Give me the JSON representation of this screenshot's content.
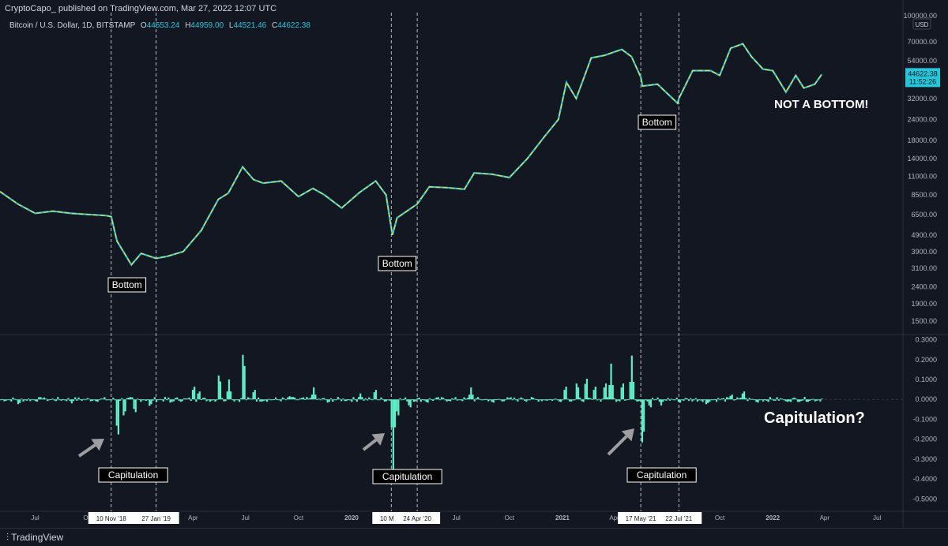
{
  "header": {
    "publisher": "CryptoCapo_ published on TradingView.com, Mar 27, 2022 12:07 UTC"
  },
  "legend": {
    "symbol": "Bitcoin / U.S. Dollar, 1D, BITSTAMP",
    "open_label": "O",
    "open": "44553.24",
    "high_label": "H",
    "high": "44959.00",
    "low_label": "L",
    "low": "44521.46",
    "close_label": "C",
    "close": "44622.38"
  },
  "price_axis": {
    "currency": "USD",
    "last_price": "44622.38",
    "countdown": "11:52:26",
    "price_color": "#26c6da"
  },
  "footer": {
    "brand": "TradingView"
  },
  "annotations": {
    "bottom_label": "Bottom",
    "capitulation_label": "Capitulation",
    "not_a_bottom": "NOT A BOTTOM!",
    "capitulation_question": "Capitulation?"
  },
  "colors": {
    "background": "#131722",
    "price_line": "#e6d84a",
    "price_line_alt": "#26c6da",
    "histogram": "#5ff0c8",
    "grid": "#1e222d",
    "arrow": "#9e9e9e"
  },
  "chart_data": [
    {
      "type": "line",
      "title": "",
      "series": [
        {
          "name": "",
          "values": [
            [
              "2018-05-01",
              8900
            ],
            [
              "2018-06-01",
              7500
            ],
            [
              "2018-07-01",
              6600
            ],
            [
              "2018-08-01",
              6800
            ],
            [
              "2018-09-01",
              6600
            ],
            [
              "2018-10-01",
              6500
            ],
            [
              "2018-11-01",
              6400
            ],
            [
              "2018-11-10",
              6300
            ],
            [
              "2018-11-20",
              4500
            ],
            [
              "2018-12-15",
              3250
            ],
            [
              "2019-01-01",
              3800
            ],
            [
              "2019-01-27",
              3550
            ],
            [
              "2019-02-15",
              3650
            ],
            [
              "2019-03-15",
              3900
            ],
            [
              "2019-04-15",
              5200
            ],
            [
              "2019-05-15",
              8000
            ],
            [
              "2019-06-01",
              8700
            ],
            [
              "2019-06-26",
              12500
            ],
            [
              "2019-07-15",
              10500
            ],
            [
              "2019-08-01",
              10000
            ],
            [
              "2019-09-01",
              10300
            ],
            [
              "2019-10-01",
              8300
            ],
            [
              "2019-10-26",
              9300
            ],
            [
              "2019-11-15",
              8500
            ],
            [
              "2019-12-15",
              7100
            ],
            [
              "2020-01-15",
              8800
            ],
            [
              "2020-02-12",
              10300
            ],
            [
              "2020-03-01",
              8500
            ],
            [
              "2020-03-12",
              4900
            ],
            [
              "2020-03-20",
              6200
            ],
            [
              "2020-04-24",
              7500
            ],
            [
              "2020-05-15",
              9500
            ],
            [
              "2020-06-15",
              9400
            ],
            [
              "2020-07-15",
              9200
            ],
            [
              "2020-08-01",
              11500
            ],
            [
              "2020-09-01",
              11300
            ],
            [
              "2020-10-01",
              10800
            ],
            [
              "2020-11-01",
              14000
            ],
            [
              "2020-12-01",
              19000
            ],
            [
              "2020-12-25",
              24000
            ],
            [
              "2021-01-08",
              40000
            ],
            [
              "2021-01-25",
              32000
            ],
            [
              "2021-02-20",
              56000
            ],
            [
              "2021-03-15",
              58000
            ],
            [
              "2021-04-14",
              63000
            ],
            [
              "2021-05-01",
              57000
            ],
            [
              "2021-05-17",
              43000
            ],
            [
              "2021-05-20",
              38000
            ],
            [
              "2021-06-15",
              39000
            ],
            [
              "2021-07-20",
              30000
            ],
            [
              "2021-07-22",
              32000
            ],
            [
              "2021-08-15",
              47000
            ],
            [
              "2021-09-15",
              47000
            ],
            [
              "2021-10-01",
              44000
            ],
            [
              "2021-10-20",
              64000
            ],
            [
              "2021-11-10",
              68000
            ],
            [
              "2021-11-25",
              57000
            ],
            [
              "2021-12-15",
              48000
            ],
            [
              "2022-01-01",
              47000
            ],
            [
              "2022-01-24",
              35000
            ],
            [
              "2022-02-10",
              44000
            ],
            [
              "2022-02-24",
              37000
            ],
            [
              "2022-03-15",
              39000
            ],
            [
              "2022-03-27",
              44622
            ]
          ]
        }
      ],
      "y_ticks": [
        "1500.00",
        "1900.00",
        "2400.00",
        "3100.00",
        "3900.00",
        "4900.00",
        "6500.00",
        "8500.00",
        "11000.00",
        "14000.00",
        "18000.00",
        "24000.00",
        "32000.00",
        "54000.00",
        "70000.00",
        "100000.00"
      ],
      "y_scale": "log",
      "ylim": [
        1300,
        100000
      ],
      "x_ticks": [
        "Jul",
        "Oct",
        "2019",
        "Apr",
        "Jul",
        "Oct",
        "2020",
        "Apr",
        "Jul",
        "Oct",
        "2021",
        "Apr",
        "Jul",
        "Oct",
        "2022",
        "Apr",
        "Jul"
      ],
      "x_highlight": [
        "10 Nov '18",
        "27 Jan '19",
        "10 Mar '",
        "24 Apr '20",
        "17 May '21",
        "22 Jul '21"
      ],
      "xlim": [
        "2018-05-01",
        "2022-08-15"
      ],
      "grid": false
    },
    {
      "type": "bar",
      "title": "",
      "series": [
        {
          "name": "",
          "values": [
            [
              "2018-06-01",
              -0.03
            ],
            [
              "2018-07-15",
              0.01
            ],
            [
              "2018-09-01",
              -0.02
            ],
            [
              "2018-10-15",
              -0.015
            ],
            [
              "2018-11-20",
              -0.22
            ],
            [
              "2018-12-01",
              -0.1
            ],
            [
              "2018-12-20",
              -0.08
            ],
            [
              "2019-01-15",
              -0.04
            ],
            [
              "2019-02-20",
              -0.02
            ],
            [
              "2019-04-01",
              0.08
            ],
            [
              "2019-04-10",
              0.05
            ],
            [
              "2019-05-15",
              0.15
            ],
            [
              "2019-06-01",
              0.1
            ],
            [
              "2019-06-26",
              0.28
            ],
            [
              "2019-07-15",
              0.06
            ],
            [
              "2019-09-15",
              0.02
            ],
            [
              "2019-10-26",
              0.06
            ],
            [
              "2019-11-20",
              -0.02
            ],
            [
              "2020-01-15",
              0.03
            ],
            [
              "2020-02-10",
              0.06
            ],
            [
              "2020-03-12",
              -0.35
            ],
            [
              "2020-03-20",
              -0.1
            ],
            [
              "2020-04-10",
              -0.05
            ],
            [
              "2020-05-10",
              -0.02
            ],
            [
              "2020-07-25",
              0.06
            ],
            [
              "2020-09-01",
              -0.02
            ],
            [
              "2020-10-20",
              0.01
            ],
            [
              "2021-01-05",
              0.08
            ],
            [
              "2021-01-25",
              0.1
            ],
            [
              "2021-02-10",
              0.13
            ],
            [
              "2021-02-25",
              0.08
            ],
            [
              "2021-03-15",
              0.1
            ],
            [
              "2021-03-25",
              0.18
            ],
            [
              "2021-04-14",
              0.1
            ],
            [
              "2021-04-30",
              0.22
            ],
            [
              "2021-05-19",
              -0.27
            ],
            [
              "2021-06-01",
              -0.05
            ],
            [
              "2021-06-20",
              -0.03
            ],
            [
              "2021-07-22",
              -0.02
            ],
            [
              "2021-09-07",
              -0.03
            ],
            [
              "2021-10-20",
              0.03
            ],
            [
              "2021-11-10",
              0.05
            ],
            [
              "2021-12-04",
              -0.02
            ],
            [
              "2022-01-24",
              -0.015
            ],
            [
              "2022-03-27",
              0.005
            ]
          ]
        }
      ],
      "y_ticks": [
        "0.3000",
        "0.2000",
        "0.1000",
        "0.0000",
        "-0.1000",
        "-0.2000",
        "-0.3000",
        "-0.4000",
        "-0.5000"
      ],
      "ylim": [
        -0.55,
        0.31
      ],
      "xlim": [
        "2018-05-01",
        "2022-08-15"
      ],
      "grid": false
    }
  ]
}
